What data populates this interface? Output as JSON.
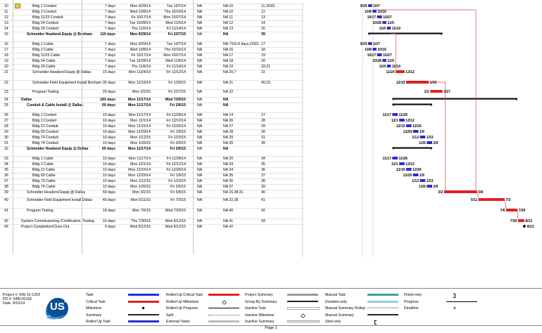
{
  "rows": [
    {
      "id": "10",
      "name": "Bldg 1 Conduit",
      "dur": "7 days",
      "start": "Mon 9/29/14",
      "finish": "Tue 10/7/14",
      "cons": "NA",
      "pred": "NA 10",
      "succ": "11,16SS",
      "ind": 1
    },
    {
      "id": "11",
      "name": "Bldg 2 Conduit",
      "dur": "7 days",
      "start": "Wed 10/8/14",
      "finish": "Thu 10/16/14",
      "cons": "NA",
      "pred": "NA 10",
      "succ": "12",
      "ind": 1
    },
    {
      "id": "12",
      "name": "Bldg 11/23 Conduit",
      "dur": "7 days",
      "start": "Fri 10/17/14",
      "finish": "Mon 10/27/14",
      "cons": "NA",
      "pred": "NA 11",
      "succ": "13",
      "ind": 1
    },
    {
      "id": "13",
      "name": "Bldg 24 Conduit",
      "dur": "7 days",
      "start": "Tue 10/28/14",
      "finish": "Wed 11/5/14",
      "cons": "NA",
      "pred": "NA 12",
      "succ": "14",
      "ind": 1
    },
    {
      "id": "14",
      "name": "Bldg 29 Conduit",
      "dur": "7 days",
      "start": "Thu 11/6/14",
      "finish": "Fri 11/14/14",
      "cons": "NA",
      "pred": "NA 13",
      "succ": "26",
      "ind": 1
    },
    {
      "id": "15",
      "name": "Schneider Headend Equip @ Bonham",
      "dur": "110 days",
      "start": "Mon 9/29/14",
      "finish": "Fri 2/27/15",
      "cons": "NA",
      "pred": "NA",
      "succ": "39",
      "ind": 0,
      "summary": true
    },
    {
      "id": "16",
      "name": "Bldg 1 Cable",
      "dur": "7 days",
      "start": "Mon 9/29/14",
      "finish": "Tue 10/7/14",
      "cons": "NA",
      "pred": "NA 7SS+5 days,10SS",
      "succ": "17",
      "ind": 1
    },
    {
      "id": "17",
      "name": "Bldg 2 Cable",
      "dur": "7 days",
      "start": "Wed 10/8/14",
      "finish": "Thu 10/16/14",
      "cons": "NA",
      "pred": "NA 16",
      "succ": "18",
      "ind": 1
    },
    {
      "id": "18",
      "name": "Bldg 11/23 Cable",
      "dur": "7 days",
      "start": "Fri 10/17/14",
      "finish": "Mon 10/27/14",
      "cons": "NA",
      "pred": "NA 17",
      "succ": "19",
      "ind": 1
    },
    {
      "id": "19",
      "name": "Bldg 24 Cable",
      "dur": "7 days",
      "start": "Tue 10/28/14",
      "finish": "Wed 11/5/14",
      "cons": "NA",
      "pred": "NA 18",
      "succ": "20",
      "ind": 1
    },
    {
      "id": "20",
      "name": "Bldg 29 Cable",
      "dur": "7 days",
      "start": "Thu 11/6/14",
      "finish": "Fri 11/14/14",
      "cons": "NA",
      "pred": "NA 19",
      "succ": "33,21",
      "ind": 1
    },
    {
      "id": "21",
      "name": "Schneider Headend Equip @ Dallas",
      "dur": "15 days",
      "start": "Mon 11/24/14",
      "finish": "Fri 12/12/14",
      "cons": "NA",
      "pred": "NA 20,7",
      "succ": "22",
      "ind": 1
    },
    {
      "id": "22",
      "name": "Schneider Field Equipment Install Bonham",
      "dur": "35 days",
      "start": "Mon 12/15/14",
      "finish": "Fri 1/30/15",
      "cons": "NA",
      "pred": "NA 21",
      "succ": "40,23",
      "ind": 1
    },
    {
      "id": "23",
      "name": "Program Testing",
      "dur": "20 days",
      "start": "Mon 2/2/15",
      "finish": "Fri 2/27/15",
      "cons": "NA",
      "pred": "NA 22",
      "succ": "",
      "ind": 1
    },
    {
      "id": "24",
      "name": "Dallas",
      "dur": "183 days",
      "start": "Mon 11/17/14",
      "finish": "Wed 7/29/15",
      "cons": "NA",
      "pred": "NA",
      "succ": "",
      "ind": -1,
      "summary": true
    },
    {
      "id": "25",
      "name": "Conduit & Cable Install @ Dallas",
      "dur": "60 days",
      "start": "Mon 11/17/14",
      "finish": "Fri 2/6/15",
      "cons": "NA",
      "pred": "NA",
      "succ": "",
      "ind": 0,
      "summary": true
    },
    {
      "id": "26",
      "name": "Bldg 1 Conduit",
      "dur": "10 days",
      "start": "Mon 11/17/14",
      "finish": "Fri 11/28/14",
      "cons": "NA",
      "pred": "NA 14",
      "succ": "27",
      "ind": 1
    },
    {
      "id": "27",
      "name": "Bldg 2 Conduit",
      "dur": "10 days",
      "start": "Mon 12/1/14",
      "finish": "Fri 12/12/14",
      "cons": "NA",
      "pred": "NA 26",
      "succ": "28",
      "ind": 1
    },
    {
      "id": "28",
      "name": "Bldg 2J Conduit",
      "dur": "10 days",
      "start": "Mon 12/15/14",
      "finish": "Fri 12/26/14",
      "cons": "NA",
      "pred": "NA 27",
      "succ": "29",
      "ind": 1
    },
    {
      "id": "29",
      "name": "Bldg 60 Conduit",
      "dur": "10 days",
      "start": "Mon 12/29/14",
      "finish": "Fri 1/9/15",
      "cons": "NA",
      "pred": "NA 28",
      "succ": "30",
      "ind": 1
    },
    {
      "id": "30",
      "name": "Bldg 70 Conduit",
      "dur": "10 days",
      "start": "Mon 1/12/15",
      "finish": "Fri 1/23/15",
      "cons": "NA",
      "pred": "NA 29",
      "succ": "31",
      "ind": 1
    },
    {
      "id": "31",
      "name": "Bldg 74 Conduit",
      "dur": "10 days",
      "start": "Mon 1/26/15",
      "finish": "Fri 2/6/15",
      "cons": "NA",
      "pred": "NA 30",
      "succ": "39",
      "ind": 1
    },
    {
      "id": "32",
      "name": "Schneider Headend Equip @ Dallas",
      "dur": "60 days",
      "start": "Mon 11/17/14",
      "finish": "Fri 2/6/15",
      "cons": "NA",
      "pred": "NA",
      "succ": "",
      "ind": 0,
      "summary": true
    },
    {
      "id": "33",
      "name": "Bldg 1 Cable",
      "dur": "10 days",
      "start": "Mon 11/17/14",
      "finish": "Fri 11/28/14",
      "cons": "NA",
      "pred": "NA 20",
      "succ": "34",
      "ind": 1
    },
    {
      "id": "34",
      "name": "Bldg 2 Cable",
      "dur": "10 days",
      "start": "Mon 12/1/14",
      "finish": "Fri 12/12/14",
      "cons": "NA",
      "pred": "NA 33",
      "succ": "35",
      "ind": 1
    },
    {
      "id": "35",
      "name": "Bldg 2J Cable",
      "dur": "10 days",
      "start": "Mon 12/15/14",
      "finish": "Fri 12/26/14",
      "cons": "NA",
      "pred": "NA 34",
      "succ": "36",
      "ind": 1
    },
    {
      "id": "36",
      "name": "Bldg 60 Cable",
      "dur": "10 days",
      "start": "Mon 12/29/14",
      "finish": "Fri 1/9/15",
      "cons": "NA",
      "pred": "NA 35",
      "succ": "37",
      "ind": 1
    },
    {
      "id": "37",
      "name": "Bldg 70 Cable",
      "dur": "10 days",
      "start": "Mon 1/12/15",
      "finish": "Fri 1/23/15",
      "cons": "NA",
      "pred": "NA 36",
      "succ": "38",
      "ind": 1
    },
    {
      "id": "38",
      "name": "Bldg 74 Cable",
      "dur": "10 days",
      "start": "Mon 1/26/15",
      "finish": "Fri 2/6/15",
      "cons": "NA",
      "pred": "NA 37",
      "succ": "39",
      "ind": 1
    },
    {
      "id": "39",
      "name": "Schneider Headend Equip @ Dallas",
      "dur": "50 days",
      "start": "Mon 3/2/15",
      "finish": "Fri 5/8/15",
      "cons": "NA",
      "pred": "NA 15,38,31",
      "succ": "40",
      "ind": 0
    },
    {
      "id": "40",
      "name": "Schneider Field Equipment Install Dallas",
      "dur": "40 days",
      "start": "Mon 5/11/15",
      "finish": "Fri 7/3/15",
      "cons": "NA",
      "pred": "NA 22,39",
      "succ": "41",
      "ind": 0
    },
    {
      "id": "41",
      "name": "Program Testing",
      "dur": "18 days",
      "start": "Mon 7/6/15",
      "finish": "Wed 7/29/15",
      "cons": "NA",
      "pred": "NA 40",
      "succ": "42",
      "ind": 0
    },
    {
      "id": "42",
      "name": "System Commissioning /Certification /Testing",
      "dur": "10 days",
      "start": "Thu 7/30/15",
      "finish": "Wed 8/12/15",
      "cons": "NA",
      "pred": "NA 41",
      "succ": "43",
      "ind": -1
    },
    {
      "id": "43",
      "name": "Project Completion/Close Out",
      "dur": "0 days",
      "start": "Wed 8/12/15",
      "finish": "Wed 8/12/15",
      "cons": "NA",
      "pred": "NA 42",
      "succ": "",
      "ind": -1
    }
  ],
  "gantt": [
    {
      "type": "task",
      "s": "9/29",
      "f": "10/7"
    },
    {
      "type": "task",
      "s": "10/8",
      "f": "10/16"
    },
    {
      "type": "task",
      "s": "10/17",
      "f": "10/27"
    },
    {
      "type": "task",
      "s": "10/28",
      "f": "11/5"
    },
    {
      "type": "task",
      "s": "11/6",
      "f": "11/14"
    },
    {
      "type": "summary",
      "s": "",
      "f": ""
    },
    {
      "type": "task",
      "s": "9/29",
      "f": "10/7"
    },
    {
      "type": "task",
      "s": "10/8",
      "f": "10/16"
    },
    {
      "type": "task",
      "s": "10/17",
      "f": "10/27"
    },
    {
      "type": "task",
      "s": "10/28",
      "f": "11/5"
    },
    {
      "type": "task",
      "s": "11/6",
      "f": "11/14"
    },
    {
      "type": "critical",
      "s": "11/24",
      "f": "12/12"
    },
    {
      "type": "critical",
      "s": "12/15",
      "f": "1/30"
    },
    {
      "type": "critical",
      "s": "2/2",
      "f": "2/27"
    },
    {
      "type": "summary",
      "s": "",
      "f": ""
    },
    {
      "type": "summary",
      "s": "",
      "f": ""
    },
    {
      "type": "task",
      "s": "11/17",
      "f": "11/28"
    },
    {
      "type": "task",
      "s": "12/1",
      "f": "12/12"
    },
    {
      "type": "task",
      "s": "12/15",
      "f": "12/26"
    },
    {
      "type": "task",
      "s": "12/29",
      "f": "1/9"
    },
    {
      "type": "task",
      "s": "1/12",
      "f": "1/23"
    },
    {
      "type": "task",
      "s": "1/26",
      "f": "2/6"
    },
    {
      "type": "summary",
      "s": "",
      "f": ""
    },
    {
      "type": "task",
      "s": "11/17",
      "f": "11/28"
    },
    {
      "type": "task",
      "s": "12/1",
      "f": "12/12"
    },
    {
      "type": "task",
      "s": "12/15",
      "f": "12/26"
    },
    {
      "type": "task",
      "s": "12/29",
      "f": "1/9"
    },
    {
      "type": "task",
      "s": "1/12",
      "f": "1/23"
    },
    {
      "type": "task",
      "s": "1/26",
      "f": "2/6"
    },
    {
      "type": "critical",
      "s": "3/2",
      "f": "5/8"
    },
    {
      "type": "critical",
      "s": "5/11",
      "f": "7/3"
    },
    {
      "type": "critical",
      "s": "7/6",
      "f": "7/29"
    },
    {
      "type": "critical",
      "s": "7/30",
      "f": "8/12"
    },
    {
      "type": "milestone",
      "s": "",
      "f": "8/12"
    }
  ],
  "footer": {
    "project": "Project #: 549-12-1203",
    "po": "PO #: 549C41118",
    "date": "Date: 9/15/14",
    "logo_text": "US",
    "logo_sup": "2",
    "page": "Page 1"
  },
  "legend": [
    {
      "label": "Task",
      "sym": "bar-blue"
    },
    {
      "label": "Critical Task",
      "sym": "bar-red"
    },
    {
      "label": "Milestone",
      "sym": "diamond"
    },
    {
      "label": "Summary",
      "sym": "summary"
    },
    {
      "label": "Rolled Up Task",
      "sym": "bar-blue"
    },
    {
      "label": "Rolled Up Critical Task",
      "sym": "bar-red"
    },
    {
      "label": "Rolled Up Milestone",
      "sym": "diamond-open"
    },
    {
      "label": "Rolled Up Progress",
      "sym": "thin-black"
    },
    {
      "label": "Split",
      "sym": "split"
    },
    {
      "label": "External Tasks",
      "sym": "bar-grey"
    },
    {
      "label": "Project Summary",
      "sym": "bar-grey-summary"
    },
    {
      "label": "Group By Summary",
      "sym": "summary"
    },
    {
      "label": "Inactive Task",
      "sym": "bar-white"
    },
    {
      "label": "Inactive Milestone",
      "sym": "diamond-open"
    },
    {
      "label": "Inactive Summary",
      "sym": "summary-open"
    },
    {
      "label": "Manual Task",
      "sym": "bar-teal"
    },
    {
      "label": "Duration-only",
      "sym": "bar-lightblue"
    },
    {
      "label": "Manual Summary Rollup",
      "sym": "bar-lightgrey"
    },
    {
      "label": "Manual Summary",
      "sym": "summary"
    },
    {
      "label": "Start-only",
      "sym": "bracket-left"
    },
    {
      "label": "Finish-only",
      "sym": "bracket-right"
    },
    {
      "label": "Progress",
      "sym": "thin-black"
    },
    {
      "label": "Deadline",
      "sym": "arrow-down"
    }
  ],
  "colors": {
    "task": "#2b2bd6",
    "critical": "#e02020",
    "summary": "#111111",
    "link": "#e84040"
  }
}
